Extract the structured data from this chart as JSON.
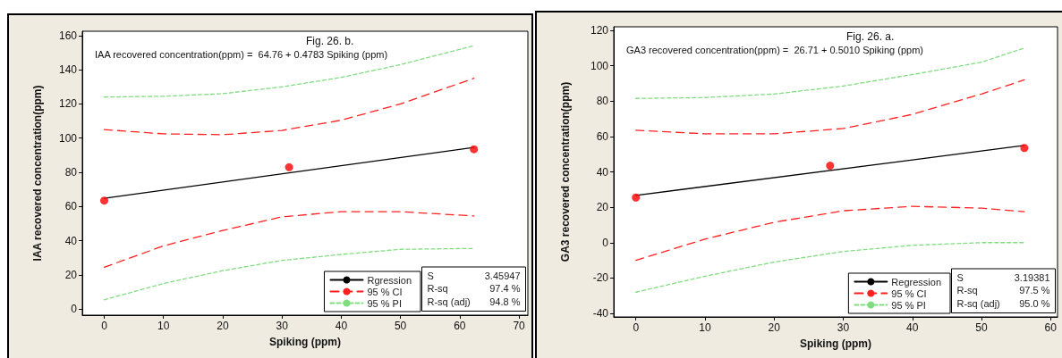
{
  "chart_data": [
    {
      "type": "line",
      "title": "Fig. 26. b.",
      "xlabel": "Spiking (ppm)",
      "ylabel": "IAA recovered concentration(ppm)",
      "annotations": [
        "IAA recovered concentration(ppm) =  64.76 + 0.4783 Spiking (ppm)",
        "S",
        "3.45947",
        "R-sq",
        "97.4 %",
        "R-sq (adj)",
        "94.8 %"
      ],
      "xlim": [
        -3.7,
        71.5
      ],
      "xticks": [
        0,
        10,
        20,
        30,
        40,
        50,
        60,
        70
      ],
      "ylim": [
        -3.5,
        162.5
      ],
      "yticks": [
        0,
        20,
        40,
        60,
        80,
        100,
        120,
        140,
        160
      ],
      "grid": false,
      "legend": "bottom right",
      "marker": "none",
      "series": [
        {
          "name": "Rgression",
          "color": "#000000",
          "line_style": "solid",
          "x": [
            0,
            62.4
          ],
          "values": [
            64.8,
            94.6
          ]
        },
        {
          "name": "95 % CI",
          "color": "#ff2020",
          "line_style": "dashed",
          "x": [
            0,
            10,
            20,
            30,
            40,
            50,
            62.4
          ],
          "values": [
            105,
            102.5,
            102,
            104.5,
            110.5,
            120,
            135
          ]
        },
        {
          "color": "#ff2020",
          "line_style": "dashed",
          "x": [
            0,
            10,
            20,
            30,
            40,
            50,
            62.4
          ],
          "values": [
            24.5,
            37,
            46,
            54,
            57,
            57,
            54.5
          ]
        },
        {
          "name": "95 % PI",
          "color": "#80dd80",
          "line_style": "dotted",
          "x": [
            0,
            10,
            20,
            30,
            40,
            50,
            62.4
          ],
          "values": [
            124,
            124.5,
            126,
            130,
            135.5,
            143,
            154
          ]
        },
        {
          "color": "#80dd80",
          "line_style": "dotted",
          "x": [
            0,
            10,
            20,
            30,
            40,
            50,
            62.4
          ],
          "values": [
            5.5,
            15,
            22.5,
            28.5,
            32,
            35,
            35.5
          ]
        },
        {
          "type": "scatter",
          "color": "#ff0000",
          "marker": "circle",
          "x": [
            0,
            31.2,
            62.4
          ],
          "values": [
            63.5,
            83,
            93.5
          ]
        }
      ]
    },
    {
      "type": "line",
      "title": "Fig. 26. a.",
      "xlabel": "Spiking (ppm)",
      "ylabel": "GA3 recovered concentration(ppm)",
      "annotations": [
        "GA3 recovered concentration(ppm) =  26.71 + 0.5010 Spiking (ppm)",
        "S",
        "3.19381",
        "R-sq",
        "97.5 %",
        "R-sq (adj)",
        "95.0 %"
      ],
      "xlim": [
        -3.2,
        61
      ],
      "xticks": [
        0,
        10,
        20,
        30,
        40,
        50,
        60
      ],
      "ylim": [
        -42,
        122
      ],
      "yticks": [
        -40,
        -20,
        0,
        20,
        40,
        60,
        80,
        100,
        120
      ],
      "grid": false,
      "legend": "bottom right",
      "marker": "none",
      "series": [
        {
          "name": "Regression",
          "color": "#000000",
          "line_style": "solid",
          "x": [
            0,
            56.2
          ],
          "values": [
            26.7,
            54.9
          ]
        },
        {
          "name": "95 % CI",
          "color": "#ff2020",
          "line_style": "dashed",
          "x": [
            0,
            10,
            20,
            30,
            40,
            50,
            56.2
          ],
          "values": [
            63.5,
            61.5,
            61.5,
            64.5,
            72.5,
            84,
            92
          ]
        },
        {
          "color": "#ff2020",
          "line_style": "dashed",
          "x": [
            0,
            10,
            20,
            30,
            40,
            50,
            56.2
          ],
          "values": [
            -10,
            2,
            11.5,
            18,
            20.5,
            19.5,
            17.5
          ]
        },
        {
          "name": "95 % PI",
          "color": "#80dd80",
          "line_style": "dotted",
          "x": [
            0,
            10,
            20,
            30,
            40,
            50,
            56.2
          ],
          "values": [
            81.5,
            82,
            84,
            88.5,
            95,
            102,
            110
          ]
        },
        {
          "color": "#80dd80",
          "line_style": "dotted",
          "x": [
            0,
            10,
            20,
            30,
            40,
            50,
            56.2
          ],
          "values": [
            -28,
            -19,
            -11,
            -5,
            -1.5,
            0,
            0
          ]
        },
        {
          "type": "scatter",
          "color": "#ff0000",
          "marker": "circle",
          "x": [
            0,
            28.1,
            56.2
          ],
          "values": [
            25.5,
            43.5,
            53.5
          ]
        }
      ]
    }
  ]
}
